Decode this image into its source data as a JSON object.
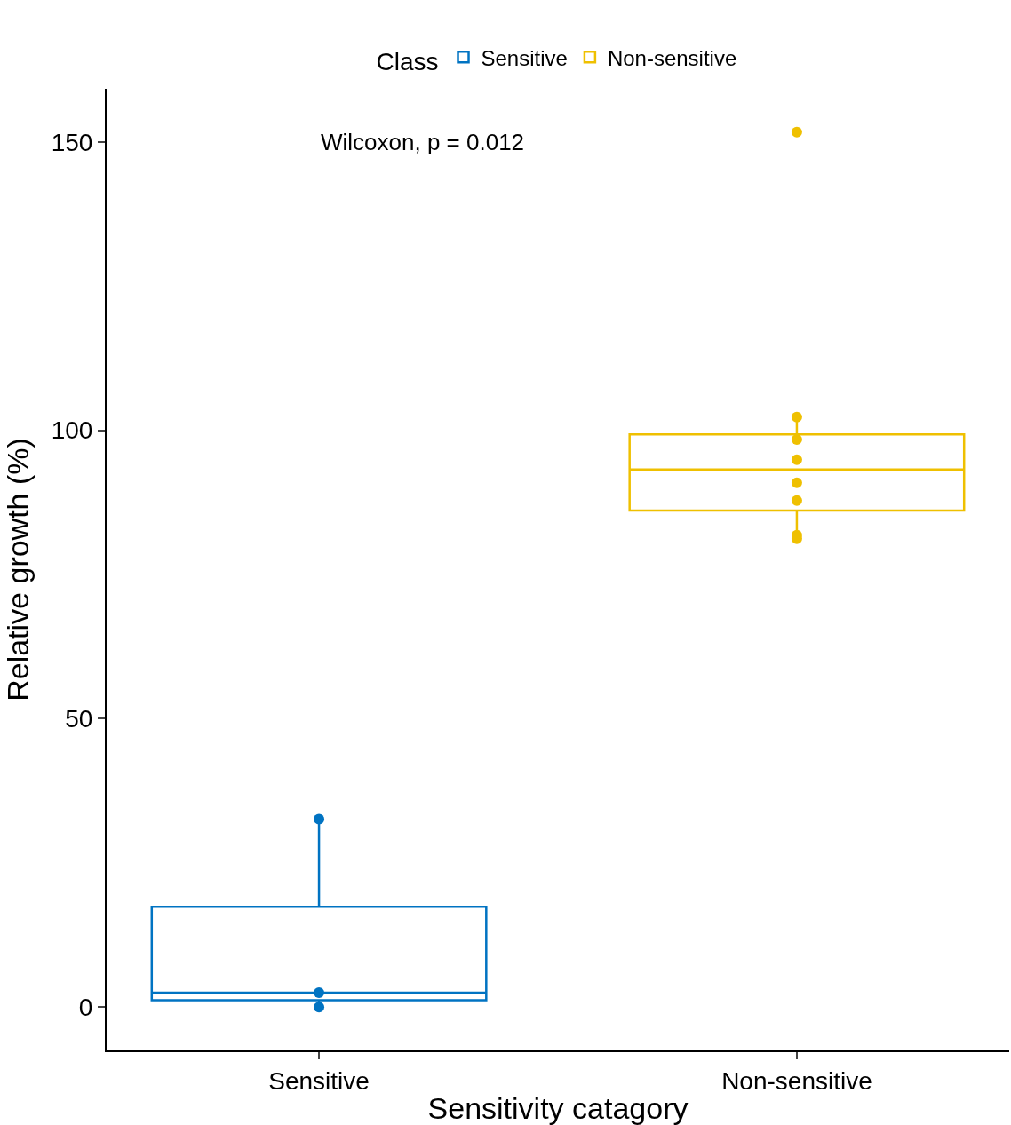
{
  "chart_data": {
    "type": "box",
    "xlabel": "Sensitivity catagory",
    "ylabel": "Relative growth (%)",
    "legend_title": "Class",
    "categories": [
      "Sensitive",
      "Non-sensitive"
    ],
    "series": [
      {
        "name": "Sensitive",
        "color": "#0073c2",
        "boxes": [
          {
            "low": 0,
            "q1": 1.2,
            "median": 2.5,
            "q3": 17.4,
            "high": 32.5
          },
          null
        ]
      },
      {
        "name": "Non-sensitive",
        "color": "#efc000",
        "boxes": [
          null,
          {
            "low": 80.9,
            "q1": 86.1,
            "median": 93.2,
            "q3": 99.3,
            "high": 102.1
          }
        ]
      },
      {
        "color": "#0073c2",
        "type": "scatter",
        "x": [
          "Sensitive",
          "Sensitive",
          "Sensitive"
        ],
        "values": [
          32.6,
          2.5,
          0
        ]
      },
      {
        "color": "#efc000",
        "type": "scatter",
        "x": [
          "Non-sensitive",
          "Non-sensitive",
          "Non-sensitive",
          "Non-sensitive",
          "Non-sensitive",
          "Non-sensitive",
          "Non-sensitive",
          "Non-sensitive"
        ],
        "values": [
          151.7,
          102.3,
          98.4,
          94.9,
          90.9,
          87.8,
          81.2,
          81.8
        ]
      }
    ],
    "ylim": [
      -7.5,
      159.2
    ],
    "yticks": [
      0,
      50,
      100,
      150
    ],
    "legend": "top",
    "marker": "circle",
    "annotations": [
      "Wilcoxon, p = 0.012"
    ]
  }
}
